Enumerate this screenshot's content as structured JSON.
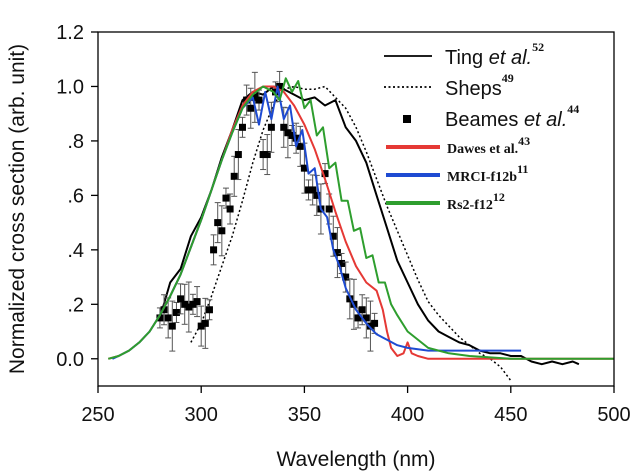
{
  "chart_data": {
    "type": "line",
    "xlabel": "Wavelength (nm)",
    "ylabel": "Normalized cross section (arb. unit)",
    "xlim": [
      250,
      500
    ],
    "ylim": [
      -0.1,
      1.2
    ],
    "x_ticks": [
      "250",
      "300",
      "350",
      "400",
      "450",
      "500"
    ],
    "y_ticks": [
      "0.0",
      ".2",
      ".4",
      ".6",
      ".8",
      "1.0",
      "1.2"
    ],
    "legend_position": "top-right",
    "series": [
      {
        "name": "Ting et al.",
        "name_parts": [
          "Ting ",
          "et al."
        ],
        "ref": "52",
        "color": "#000000",
        "style": "solid",
        "x": [
          280,
          285,
          290,
          295,
          300,
          305,
          310,
          315,
          320,
          325,
          330,
          335,
          340,
          345,
          350,
          355,
          360,
          365,
          370,
          375,
          380,
          385,
          390,
          395,
          400,
          405,
          410,
          415,
          420,
          425,
          430,
          435,
          440,
          445,
          450,
          455,
          460,
          465,
          470,
          475,
          480,
          483
        ],
        "y": [
          0.15,
          0.28,
          0.33,
          0.45,
          0.52,
          0.62,
          0.74,
          0.84,
          0.95,
          0.98,
          0.97,
          1.0,
          0.99,
          0.97,
          0.95,
          0.96,
          0.93,
          0.95,
          0.85,
          0.8,
          0.72,
          0.6,
          0.48,
          0.36,
          0.28,
          0.2,
          0.14,
          0.1,
          0.08,
          0.06,
          0.05,
          0.03,
          0.02,
          0.02,
          0.01,
          0.01,
          -0.01,
          -0.02,
          -0.01,
          -0.02,
          -0.01,
          -0.02
        ]
      },
      {
        "name": "Sheps",
        "name_parts": [
          "Sheps",
          ""
        ],
        "ref": "49",
        "color": "#000000",
        "style": "dotted",
        "x": [
          295,
          300,
          305,
          310,
          315,
          320,
          325,
          330,
          335,
          340,
          345,
          350,
          355,
          360,
          365,
          370,
          375,
          380,
          385,
          390,
          395,
          400,
          405,
          410,
          415,
          420,
          425,
          430,
          435,
          440,
          445,
          450
        ],
        "y": [
          0.06,
          0.13,
          0.23,
          0.34,
          0.45,
          0.58,
          0.72,
          0.84,
          0.93,
          0.99,
          1.0,
          0.99,
          0.99,
          1.0,
          0.96,
          0.92,
          0.85,
          0.76,
          0.66,
          0.56,
          0.47,
          0.38,
          0.29,
          0.21,
          0.16,
          0.12,
          0.08,
          0.05,
          0.02,
          0.0,
          -0.03,
          -0.08
        ]
      },
      {
        "name": "Beames et al.",
        "name_parts": [
          "Beames ",
          "et al."
        ],
        "ref": "44",
        "color": "#000000",
        "style": "markers",
        "x": [
          280,
          282,
          284,
          286,
          288,
          290,
          292,
          294,
          296,
          298,
          300,
          302,
          304,
          306,
          308,
          310,
          312,
          314,
          316,
          318,
          320,
          322,
          324,
          326,
          328,
          330,
          332,
          334,
          336,
          338,
          340,
          342,
          344,
          346,
          348,
          350,
          352,
          354,
          356,
          358,
          360,
          362,
          364,
          366,
          368,
          370,
          372,
          374,
          376,
          378,
          380,
          382,
          384
        ],
        "y": [
          0.15,
          0.18,
          0.15,
          0.12,
          0.17,
          0.22,
          0.2,
          0.19,
          0.2,
          0.21,
          0.12,
          0.13,
          0.18,
          0.4,
          0.5,
          0.47,
          0.59,
          0.55,
          0.67,
          0.75,
          0.85,
          0.95,
          0.92,
          0.96,
          0.95,
          0.75,
          0.75,
          0.85,
          0.98,
          1.0,
          0.85,
          0.83,
          0.82,
          0.81,
          0.78,
          0.7,
          0.62,
          0.62,
          0.6,
          0.55,
          0.68,
          0.55,
          0.45,
          0.39,
          0.35,
          0.3,
          0.22,
          0.2,
          0.15,
          0.18,
          0.15,
          0.12,
          0.13
        ]
      },
      {
        "name": "Dawes et al.",
        "name_parts": [
          "Dawes et al.",
          ""
        ],
        "ref": "43",
        "color": "#e53935",
        "style": "solid",
        "x": [
          255,
          260,
          265,
          270,
          275,
          280,
          285,
          290,
          295,
          300,
          305,
          310,
          315,
          320,
          325,
          330,
          335,
          340,
          345,
          350,
          355,
          360,
          365,
          370,
          375,
          380,
          385,
          388,
          390,
          392,
          395,
          398,
          400,
          402,
          405,
          410,
          420,
          430,
          450,
          470,
          500
        ],
        "y": [
          0.0,
          0.01,
          0.03,
          0.06,
          0.1,
          0.16,
          0.23,
          0.31,
          0.41,
          0.51,
          0.62,
          0.73,
          0.84,
          0.93,
          0.98,
          1.0,
          1.0,
          0.98,
          0.93,
          0.86,
          0.77,
          0.66,
          0.54,
          0.43,
          0.34,
          0.28,
          0.25,
          0.18,
          0.1,
          0.04,
          0.01,
          0.02,
          0.06,
          0.02,
          0.01,
          0.0,
          0.0,
          0.0,
          0.0,
          0.0,
          0.0
        ]
      },
      {
        "name": "MRCI-f12b",
        "name_parts": [
          "MRCI-f12b",
          ""
        ],
        "ref": "11",
        "color": "#1e4bd2",
        "style": "solid",
        "x": [
          257,
          260,
          265,
          270,
          275,
          280,
          285,
          290,
          295,
          300,
          305,
          310,
          315,
          320,
          325,
          328,
          331,
          334,
          337,
          340,
          343,
          346,
          349,
          352,
          355,
          358,
          361,
          364,
          367,
          370,
          375,
          380,
          385,
          390,
          395,
          400,
          410,
          420,
          430,
          440,
          450,
          455
        ],
        "y": [
          0.0,
          0.01,
          0.03,
          0.06,
          0.1,
          0.16,
          0.23,
          0.31,
          0.41,
          0.51,
          0.62,
          0.73,
          0.83,
          0.92,
          0.96,
          0.86,
          0.98,
          0.88,
          1.0,
          0.88,
          0.93,
          0.78,
          0.84,
          0.68,
          0.7,
          0.55,
          0.52,
          0.4,
          0.34,
          0.26,
          0.18,
          0.13,
          0.09,
          0.07,
          0.05,
          0.04,
          0.03,
          0.03,
          0.03,
          0.03,
          0.03,
          0.03
        ]
      },
      {
        "name": "Rs2-f12",
        "name_parts": [
          "Rs2-f12",
          ""
        ],
        "ref": "12",
        "color": "#2e9e2e",
        "style": "solid",
        "x": [
          255,
          260,
          265,
          270,
          275,
          280,
          285,
          290,
          295,
          300,
          305,
          310,
          315,
          320,
          325,
          330,
          335,
          338,
          341,
          344,
          347,
          350,
          353,
          356,
          359,
          362,
          365,
          368,
          371,
          374,
          377,
          380,
          383,
          386,
          389,
          392,
          395,
          400,
          410,
          420,
          430,
          450,
          470,
          500
        ],
        "y": [
          0.0,
          0.01,
          0.03,
          0.06,
          0.1,
          0.16,
          0.23,
          0.31,
          0.41,
          0.51,
          0.62,
          0.73,
          0.83,
          0.92,
          0.97,
          1.0,
          0.98,
          0.95,
          1.03,
          0.98,
          1.02,
          0.92,
          0.95,
          0.82,
          0.85,
          0.7,
          0.72,
          0.58,
          0.58,
          0.47,
          0.48,
          0.37,
          0.38,
          0.28,
          0.28,
          0.2,
          0.16,
          0.1,
          0.04,
          0.02,
          0.01,
          0.0,
          0.0,
          0.0
        ]
      }
    ]
  }
}
